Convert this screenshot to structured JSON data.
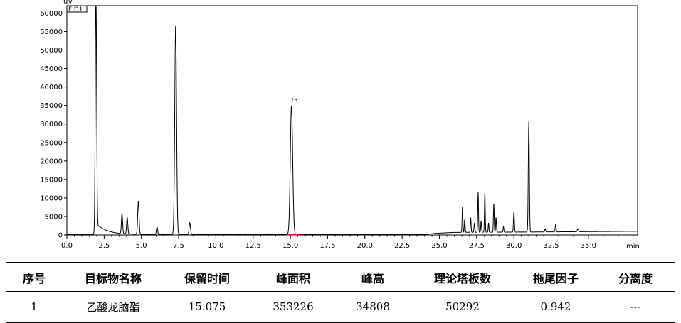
{
  "chart_data": {
    "type": "line",
    "detector_label": "FID1",
    "y_unit": "uV",
    "x_unit": "min",
    "xlim": [
      0,
      38.3
    ],
    "ylim": [
      0,
      62000
    ],
    "x_ticks": [
      "0.0",
      "2.5",
      "5.0",
      "7.5",
      "10.0",
      "12.5",
      "15.0",
      "17.5",
      "20.0",
      "22.5",
      "25.0",
      "27.5",
      "30.0",
      "32.5",
      "35.0"
    ],
    "y_ticks": [
      "0",
      "5000",
      "10000",
      "15000",
      "20000",
      "25000",
      "30000",
      "35000",
      "40000",
      "45000",
      "50000",
      "55000",
      "60000"
    ],
    "peak_annotation": "1",
    "peaks": [
      {
        "t": 1.95,
        "h": 66000,
        "w": 0.045,
        "tail": 0.7
      },
      {
        "t": 3.7,
        "h": 5400,
        "w": 0.04
      },
      {
        "t": 4.05,
        "h": 4500,
        "w": 0.04
      },
      {
        "t": 4.8,
        "h": 9000,
        "w": 0.045
      },
      {
        "t": 6.05,
        "h": 2000,
        "w": 0.04
      },
      {
        "t": 7.3,
        "h": 56500,
        "w": 0.06
      },
      {
        "t": 8.25,
        "h": 3200,
        "w": 0.045
      },
      {
        "t": 15.075,
        "h": 34808,
        "w": 0.08
      },
      {
        "t": 26.55,
        "h": 7000,
        "w": 0.025
      },
      {
        "t": 26.7,
        "h": 3500,
        "w": 0.025
      },
      {
        "t": 27.1,
        "h": 4000,
        "w": 0.025
      },
      {
        "t": 27.35,
        "h": 2500,
        "w": 0.025
      },
      {
        "t": 27.6,
        "h": 10800,
        "w": 0.025
      },
      {
        "t": 27.8,
        "h": 3000,
        "w": 0.025
      },
      {
        "t": 28.05,
        "h": 10800,
        "w": 0.025
      },
      {
        "t": 28.3,
        "h": 2500,
        "w": 0.025
      },
      {
        "t": 28.65,
        "h": 7800,
        "w": 0.025
      },
      {
        "t": 28.8,
        "h": 4000,
        "w": 0.025
      },
      {
        "t": 29.3,
        "h": 1500,
        "w": 0.025
      },
      {
        "t": 30.0,
        "h": 5500,
        "w": 0.03
      },
      {
        "t": 31.0,
        "h": 29800,
        "w": 0.035
      },
      {
        "t": 32.1,
        "h": 800,
        "w": 0.03
      },
      {
        "t": 32.8,
        "h": 2000,
        "w": 0.03
      },
      {
        "t": 34.3,
        "h": 800,
        "w": 0.04
      }
    ],
    "baseline": [
      {
        "x": 0.0,
        "y": 150
      },
      {
        "x": 24.0,
        "y": 150
      },
      {
        "x": 25.0,
        "y": 500
      },
      {
        "x": 26.0,
        "y": 700
      },
      {
        "x": 31.3,
        "y": 800
      },
      {
        "x": 38.3,
        "y": 1000
      }
    ]
  },
  "table": {
    "headers": [
      "序号",
      "目标物名称",
      "保留时间",
      "峰面积",
      "峰高",
      "理论塔板数",
      "拖尾因子",
      "分离度"
    ],
    "rows": [
      [
        "1",
        "乙酸龙脑酯",
        "15.075",
        "353226",
        "34808",
        "50292",
        "0.942",
        "---"
      ]
    ]
  }
}
